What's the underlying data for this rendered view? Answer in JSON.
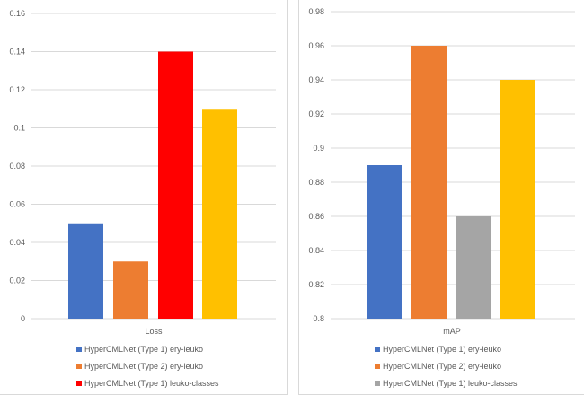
{
  "chart_data": [
    {
      "type": "bar",
      "categories": [
        "Loss"
      ],
      "ylim": [
        0,
        0.16
      ],
      "yticks": [
        "0",
        "0.02",
        "0.04",
        "0.06",
        "0.08",
        "0.1",
        "0.12",
        "0.14",
        "0.16"
      ],
      "grid": true,
      "legend": "bottom",
      "series": [
        {
          "name": "HyperCMLNet (Type 1) ery-leuko",
          "color": "#4472c4",
          "values": [
            0.05
          ]
        },
        {
          "name": "HyperCMLNet (Type 2) ery-leuko",
          "color": "#ed7d31",
          "values": [
            0.03
          ]
        },
        {
          "name": "HyperCMLNet (Type 1) leuko-classes",
          "color": "#ff0000",
          "values": [
            0.14
          ]
        },
        {
          "color": "#ffc000",
          "values": [
            0.11
          ]
        }
      ]
    },
    {
      "type": "bar",
      "categories": [
        "mAP"
      ],
      "ylim": [
        0.8,
        0.98
      ],
      "yticks": [
        "0.8",
        "0.82",
        "0.84",
        "0.86",
        "0.88",
        "0.9",
        "0.92",
        "0.94",
        "0.96",
        "0.98"
      ],
      "grid": true,
      "legend": "bottom",
      "series": [
        {
          "name": "HyperCMLNet (Type 1) ery-leuko",
          "color": "#4472c4",
          "values": [
            0.89
          ]
        },
        {
          "name": "HyperCMLNet (Type 2) ery-leuko",
          "color": "#ed7d31",
          "values": [
            0.96
          ]
        },
        {
          "name": "HyperCMLNet (Type 1) leuko-classes",
          "color": "#a5a5a5",
          "values": [
            0.86
          ]
        },
        {
          "color": "#ffc000",
          "values": [
            0.94
          ]
        }
      ]
    }
  ]
}
